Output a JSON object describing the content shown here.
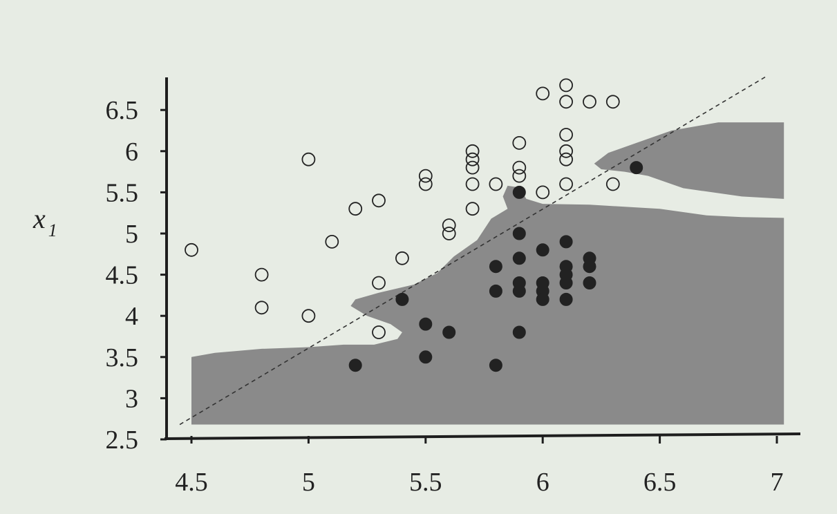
{
  "chart_data": {
    "type": "scatter",
    "title": "",
    "xlabel": "",
    "ylabel": "x",
    "ylabel_subscript": "1",
    "xlim": [
      4.4,
      7.1
    ],
    "ylim": [
      2.5,
      6.9
    ],
    "x_ticks": [
      4.5,
      5,
      5.5,
      6,
      6.5,
      7
    ],
    "x_tick_labels": [
      "4.5",
      "5",
      "5.5",
      "6",
      "6.5",
      "7"
    ],
    "y_ticks": [
      2.5,
      3,
      3.5,
      4,
      4.5,
      5,
      5.5,
      6,
      6.5
    ],
    "y_tick_labels": [
      "2.5",
      "3",
      "3.5",
      "4",
      "4.5",
      "5",
      "5.5",
      "6",
      "6.5"
    ],
    "grid": false,
    "colors": {
      "background": "#e7ece4",
      "region": "#8a8a8a",
      "axis": "#1e1e1e",
      "point_stroke": "#222222",
      "filled_point": "#222222",
      "diagonal": "#333333"
    },
    "diagonal_line": {
      "from": [
        4.45,
        2.68
      ],
      "to": [
        6.95,
        6.9
      ],
      "style": "dashed"
    },
    "region_1": [
      [
        4.5,
        2.68
      ],
      [
        4.5,
        3.5
      ],
      [
        4.6,
        3.55
      ],
      [
        4.8,
        3.6
      ],
      [
        5.0,
        3.62
      ],
      [
        5.15,
        3.65
      ],
      [
        5.28,
        3.65
      ],
      [
        5.38,
        3.72
      ],
      [
        5.4,
        3.8
      ],
      [
        5.35,
        3.9
      ],
      [
        5.25,
        4.0
      ],
      [
        5.18,
        4.12
      ],
      [
        5.2,
        4.2
      ],
      [
        5.3,
        4.28
      ],
      [
        5.45,
        4.38
      ],
      [
        5.55,
        4.52
      ],
      [
        5.62,
        4.72
      ],
      [
        5.72,
        4.92
      ],
      [
        5.78,
        5.18
      ],
      [
        5.85,
        5.3
      ],
      [
        5.83,
        5.45
      ],
      [
        5.85,
        5.58
      ],
      [
        5.9,
        5.56
      ],
      [
        5.93,
        5.42
      ],
      [
        6.0,
        5.36
      ],
      [
        6.2,
        5.35
      ],
      [
        6.5,
        5.3
      ],
      [
        6.7,
        5.22
      ],
      [
        6.85,
        5.2
      ],
      [
        7.03,
        5.19
      ],
      [
        7.03,
        2.68
      ]
    ],
    "region_2": [
      [
        6.22,
        5.85
      ],
      [
        6.28,
        5.98
      ],
      [
        6.4,
        6.1
      ],
      [
        6.55,
        6.25
      ],
      [
        6.75,
        6.35
      ],
      [
        7.03,
        6.35
      ],
      [
        7.03,
        5.42
      ],
      [
        6.85,
        5.45
      ],
      [
        6.6,
        5.55
      ],
      [
        6.45,
        5.7
      ],
      [
        6.35,
        5.75
      ],
      [
        6.25,
        5.78
      ]
    ],
    "series": [
      {
        "marker": "open-circle",
        "points": [
          [
            4.5,
            4.8
          ],
          [
            4.8,
            4.5
          ],
          [
            4.8,
            4.1
          ],
          [
            5.0,
            5.9
          ],
          [
            5.0,
            4.0
          ],
          [
            5.1,
            4.9
          ],
          [
            5.2,
            5.3
          ],
          [
            5.3,
            5.4
          ],
          [
            5.3,
            4.4
          ],
          [
            5.3,
            3.8
          ],
          [
            5.4,
            4.7
          ],
          [
            5.5,
            5.7
          ],
          [
            5.5,
            5.6
          ],
          [
            5.6,
            5.1
          ],
          [
            5.6,
            5.0
          ],
          [
            5.7,
            6.0
          ],
          [
            5.7,
            5.9
          ],
          [
            5.7,
            5.8
          ],
          [
            5.7,
            5.6
          ],
          [
            5.7,
            5.3
          ],
          [
            5.8,
            5.6
          ],
          [
            5.9,
            6.1
          ],
          [
            5.9,
            5.8
          ],
          [
            5.9,
            5.7
          ],
          [
            6.0,
            6.7
          ],
          [
            6.0,
            5.5
          ],
          [
            6.1,
            6.8
          ],
          [
            6.1,
            6.6
          ],
          [
            6.1,
            6.2
          ],
          [
            6.1,
            6.0
          ],
          [
            6.1,
            5.9
          ],
          [
            6.1,
            5.6
          ],
          [
            6.2,
            6.6
          ],
          [
            6.3,
            6.6
          ],
          [
            6.3,
            5.6
          ]
        ]
      },
      {
        "marker": "filled-circle",
        "points": [
          [
            5.2,
            3.4
          ],
          [
            5.4,
            4.2
          ],
          [
            5.5,
            3.9
          ],
          [
            5.5,
            3.5
          ],
          [
            5.6,
            3.8
          ],
          [
            5.8,
            4.6
          ],
          [
            5.8,
            4.3
          ],
          [
            5.8,
            3.4
          ],
          [
            5.9,
            5.5
          ],
          [
            5.9,
            5.0
          ],
          [
            5.9,
            4.7
          ],
          [
            5.9,
            4.4
          ],
          [
            5.9,
            4.3
          ],
          [
            5.9,
            3.8
          ],
          [
            6.0,
            4.8
          ],
          [
            6.0,
            4.4
          ],
          [
            6.0,
            4.3
          ],
          [
            6.0,
            4.2
          ],
          [
            6.1,
            4.9
          ],
          [
            6.1,
            4.6
          ],
          [
            6.1,
            4.5
          ],
          [
            6.1,
            4.4
          ],
          [
            6.1,
            4.2
          ],
          [
            6.2,
            4.7
          ],
          [
            6.2,
            4.6
          ],
          [
            6.2,
            4.4
          ],
          [
            6.4,
            5.8
          ]
        ]
      }
    ]
  }
}
